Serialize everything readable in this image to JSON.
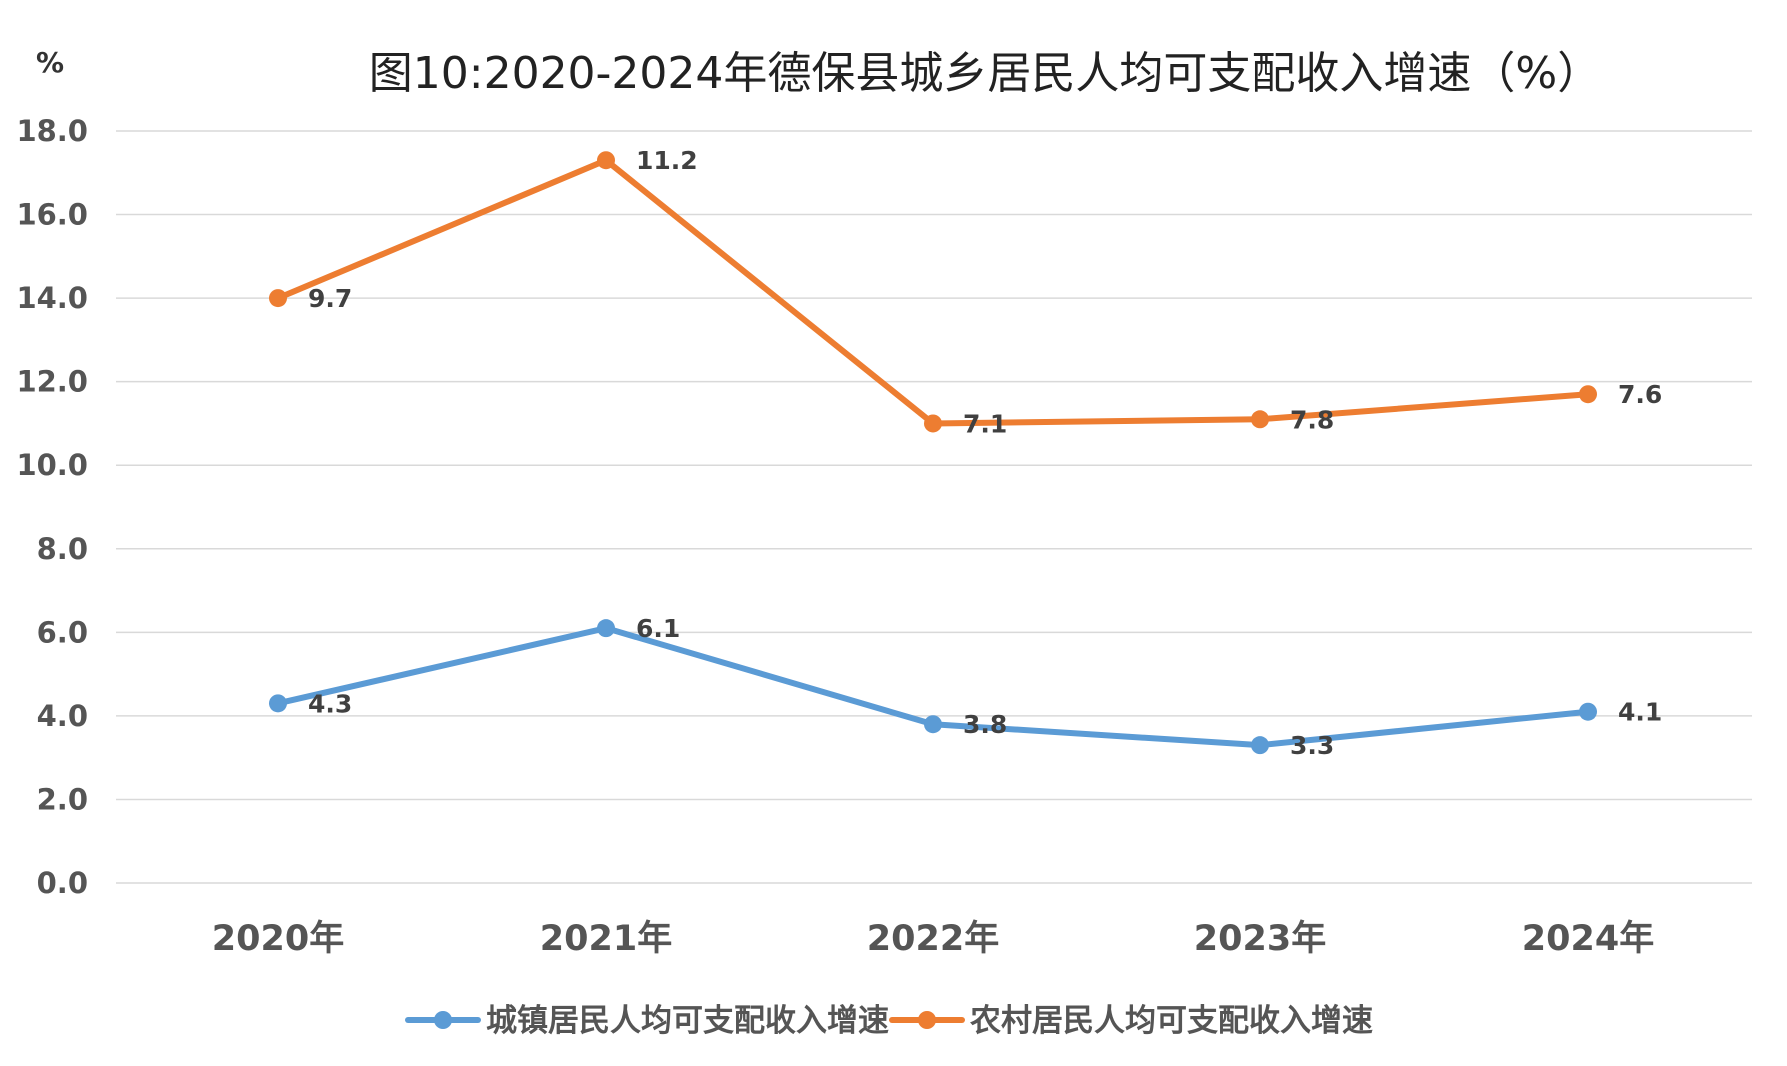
{
  "chart_data": {
    "type": "line",
    "title": "图10:2020-2024年德保县城乡居民人均可支配收入增速（%）",
    "unit_label": "%",
    "xlabel": "",
    "ylabel": "%",
    "ylim": [
      0,
      18
    ],
    "ytick_step": 2,
    "yticks": [
      "0.0",
      "2.0",
      "4.0",
      "6.0",
      "8.0",
      "10.0",
      "12.0",
      "14.0",
      "16.0",
      "18.0"
    ],
    "grid": true,
    "legend_position": "bottom",
    "categories": [
      "2020年",
      "2021年",
      "2022年",
      "2023年",
      "2024年"
    ],
    "series": [
      {
        "name": "城镇居民人均可支配收入增速",
        "color": "#5b9bd5",
        "values": [
          4.3,
          6.1,
          3.8,
          3.3,
          4.1
        ],
        "plot_values": [
          4.3,
          6.1,
          3.8,
          3.3,
          4.1
        ],
        "labels": [
          "4.3",
          "6.1",
          "3.8",
          "3.3",
          "4.1"
        ]
      },
      {
        "name": "农村居民人均可支配收入增速",
        "color": "#ed7d31",
        "values": [
          9.7,
          11.2,
          7.1,
          7.8,
          7.6
        ],
        "plot_values": [
          14.0,
          17.3,
          11.0,
          11.1,
          11.7
        ],
        "labels": [
          "9.7",
          "11.2",
          "7.1",
          "7.8",
          "7.6"
        ]
      }
    ]
  }
}
